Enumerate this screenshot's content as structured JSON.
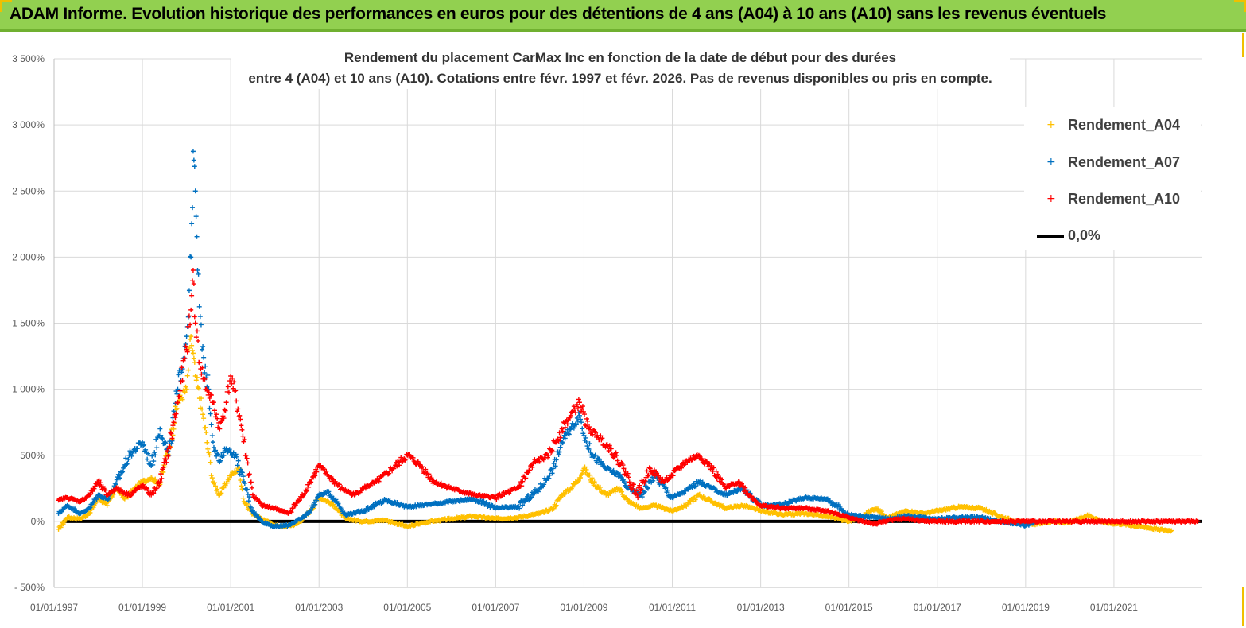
{
  "header": {
    "title": "ADAM Informe. Evolution historique des performances en euros pour des détentions de 4 ans (A04) à 10 ans (A10) sans les revenus éventuels"
  },
  "colors": {
    "header_bg": "#92d050",
    "a04": "#ffc000",
    "a07": "#0070c0",
    "a10": "#ff0000",
    "zero": "#000000",
    "grid": "#d9d9d9"
  },
  "chart_data": {
    "type": "scatter",
    "title_lines": [
      "Rendement du placement CarMax Inc en fonction de la date de début pour des durées",
      "entre 4 (A04) et 10 ans (A10).  Cotations entre févr. 1997 et févr. 2026.  Pas de revenus disponibles ou pris en compte."
    ],
    "xlabel": "",
    "ylabel": "",
    "xlim": [
      1997.0,
      2023.0
    ],
    "ylim": [
      -500,
      3500
    ],
    "y_ticks": [
      3500,
      3000,
      2500,
      2000,
      1500,
      1000,
      500,
      0,
      -500
    ],
    "y_tick_labels": [
      "3 500%",
      "3 000%",
      "2 500%",
      "2 000%",
      "1 500%",
      "1 000%",
      "500%",
      "0%",
      "- 500%"
    ],
    "x_ticks": [
      1997,
      1999,
      2001,
      2003,
      2005,
      2007,
      2009,
      2011,
      2013,
      2015,
      2017,
      2019,
      2021
    ],
    "x_tick_labels": [
      "01/01/1997",
      "01/01/1999",
      "01/01/2001",
      "01/01/2003",
      "01/01/2005",
      "01/01/2007",
      "01/01/2009",
      "01/01/2011",
      "01/01/2013",
      "01/01/2015",
      "01/01/2017",
      "01/01/2019",
      "01/01/2021"
    ],
    "legend": [
      "Rendement_A04",
      "Rendement_A07",
      "Rendement_A10",
      "0,0%"
    ],
    "legend_position": "top-right",
    "series": [
      {
        "name": "Rendement_A04",
        "color": "#ffc000",
        "points": [
          [
            1997.1,
            -60
          ],
          [
            1997.3,
            30
          ],
          [
            1997.6,
            20
          ],
          [
            1997.8,
            60
          ],
          [
            1998.0,
            180
          ],
          [
            1998.2,
            120
          ],
          [
            1998.4,
            260
          ],
          [
            1998.6,
            170
          ],
          [
            1998.8,
            240
          ],
          [
            1999.0,
            300
          ],
          [
            1999.2,
            330
          ],
          [
            1999.4,
            280
          ],
          [
            1999.6,
            560
          ],
          [
            1999.8,
            900
          ],
          [
            2000.0,
            1000
          ],
          [
            2000.1,
            1400
          ],
          [
            2000.2,
            1100
          ],
          [
            2000.35,
            850
          ],
          [
            2000.5,
            520
          ],
          [
            2000.6,
            300
          ],
          [
            2000.75,
            200
          ],
          [
            2000.9,
            290
          ],
          [
            2001.0,
            350
          ],
          [
            2001.2,
            400
          ],
          [
            2001.3,
            150
          ],
          [
            2001.5,
            60
          ],
          [
            2001.7,
            20
          ],
          [
            2002.0,
            -30
          ],
          [
            2002.2,
            -40
          ],
          [
            2002.5,
            -20
          ],
          [
            2002.8,
            80
          ],
          [
            2003.0,
            180
          ],
          [
            2003.2,
            150
          ],
          [
            2003.4,
            100
          ],
          [
            2003.6,
            20
          ],
          [
            2004.0,
            0
          ],
          [
            2004.5,
            10
          ],
          [
            2005.0,
            -40
          ],
          [
            2005.5,
            0
          ],
          [
            2006.0,
            20
          ],
          [
            2006.5,
            40
          ],
          [
            2007.0,
            20
          ],
          [
            2007.5,
            30
          ],
          [
            2008.0,
            60
          ],
          [
            2008.3,
            100
          ],
          [
            2008.5,
            200
          ],
          [
            2008.7,
            250
          ],
          [
            2008.9,
            330
          ],
          [
            2009.0,
            400
          ],
          [
            2009.2,
            300
          ],
          [
            2009.5,
            200
          ],
          [
            2009.8,
            250
          ],
          [
            2010.0,
            150
          ],
          [
            2010.3,
            100
          ],
          [
            2010.6,
            120
          ],
          [
            2011.0,
            80
          ],
          [
            2011.3,
            120
          ],
          [
            2011.6,
            200
          ],
          [
            2011.9,
            150
          ],
          [
            2012.2,
            100
          ],
          [
            2012.6,
            120
          ],
          [
            2013.0,
            80
          ],
          [
            2013.5,
            50
          ],
          [
            2014.0,
            60
          ],
          [
            2014.5,
            40
          ],
          [
            2015.0,
            0
          ],
          [
            2015.3,
            40
          ],
          [
            2015.6,
            100
          ],
          [
            2015.9,
            30
          ],
          [
            2016.3,
            80
          ],
          [
            2016.7,
            60
          ],
          [
            2017.0,
            80
          ],
          [
            2017.5,
            110
          ],
          [
            2018.0,
            100
          ],
          [
            2018.4,
            40
          ],
          [
            2018.8,
            0
          ],
          [
            2019.2,
            -20
          ],
          [
            2019.6,
            0
          ],
          [
            2020.0,
            -10
          ],
          [
            2020.4,
            50
          ],
          [
            2020.8,
            -10
          ],
          [
            2021.2,
            -20
          ],
          [
            2021.6,
            -40
          ],
          [
            2022.0,
            -60
          ],
          [
            2022.3,
            -70
          ]
        ]
      },
      {
        "name": "Rendement_A07",
        "color": "#0070c0",
        "points": [
          [
            1997.1,
            60
          ],
          [
            1997.3,
            120
          ],
          [
            1997.6,
            60
          ],
          [
            1997.8,
            100
          ],
          [
            1998.0,
            200
          ],
          [
            1998.2,
            170
          ],
          [
            1998.4,
            280
          ],
          [
            1998.7,
            500
          ],
          [
            1999.0,
            600
          ],
          [
            1999.2,
            420
          ],
          [
            1999.4,
            700
          ],
          [
            1999.6,
            500
          ],
          [
            1999.8,
            1000
          ],
          [
            2000.0,
            1400
          ],
          [
            2000.1,
            2000
          ],
          [
            2000.15,
            2800
          ],
          [
            2000.2,
            2500
          ],
          [
            2000.25,
            1900
          ],
          [
            2000.35,
            1300
          ],
          [
            2000.5,
            1000
          ],
          [
            2000.6,
            600
          ],
          [
            2000.75,
            450
          ],
          [
            2000.9,
            550
          ],
          [
            2001.1,
            500
          ],
          [
            2001.3,
            300
          ],
          [
            2001.5,
            80
          ],
          [
            2001.7,
            0
          ],
          [
            2002.0,
            -40
          ],
          [
            2002.3,
            -30
          ],
          [
            2002.6,
            20
          ],
          [
            2002.8,
            80
          ],
          [
            2003.0,
            200
          ],
          [
            2003.2,
            220
          ],
          [
            2003.4,
            150
          ],
          [
            2003.6,
            50
          ],
          [
            2004.0,
            80
          ],
          [
            2004.5,
            160
          ],
          [
            2005.0,
            110
          ],
          [
            2005.5,
            130
          ],
          [
            2006.0,
            150
          ],
          [
            2006.5,
            170
          ],
          [
            2007.0,
            100
          ],
          [
            2007.5,
            110
          ],
          [
            2008.0,
            250
          ],
          [
            2008.3,
            400
          ],
          [
            2008.5,
            600
          ],
          [
            2008.7,
            700
          ],
          [
            2008.9,
            800
          ],
          [
            2009.0,
            650
          ],
          [
            2009.2,
            500
          ],
          [
            2009.5,
            400
          ],
          [
            2009.8,
            350
          ],
          [
            2010.0,
            250
          ],
          [
            2010.3,
            200
          ],
          [
            2010.6,
            350
          ],
          [
            2011.0,
            180
          ],
          [
            2011.3,
            230
          ],
          [
            2011.6,
            300
          ],
          [
            2011.9,
            250
          ],
          [
            2012.2,
            200
          ],
          [
            2012.6,
            250
          ],
          [
            2013.0,
            120
          ],
          [
            2013.5,
            130
          ],
          [
            2014.0,
            180
          ],
          [
            2014.5,
            170
          ],
          [
            2015.0,
            50
          ],
          [
            2015.3,
            40
          ],
          [
            2015.6,
            30
          ],
          [
            2015.9,
            20
          ],
          [
            2016.3,
            40
          ],
          [
            2016.7,
            30
          ],
          [
            2017.0,
            20
          ],
          [
            2017.5,
            30
          ],
          [
            2018.0,
            30
          ],
          [
            2018.4,
            0
          ],
          [
            2018.8,
            -20
          ],
          [
            2019.0,
            -30
          ],
          [
            2019.2,
            -10
          ]
        ]
      },
      {
        "name": "Rendement_A10",
        "color": "#ff0000",
        "points": [
          [
            1997.1,
            160
          ],
          [
            1997.3,
            180
          ],
          [
            1997.6,
            150
          ],
          [
            1997.8,
            200
          ],
          [
            1998.0,
            300
          ],
          [
            1998.2,
            200
          ],
          [
            1998.4,
            250
          ],
          [
            1998.7,
            200
          ],
          [
            1999.0,
            270
          ],
          [
            1999.2,
            200
          ],
          [
            1999.4,
            300
          ],
          [
            1999.6,
            550
          ],
          [
            1999.8,
            900
          ],
          [
            2000.0,
            1300
          ],
          [
            2000.1,
            1600
          ],
          [
            2000.15,
            1900
          ],
          [
            2000.2,
            1500
          ],
          [
            2000.3,
            1200
          ],
          [
            2000.45,
            1000
          ],
          [
            2000.6,
            900
          ],
          [
            2000.75,
            700
          ],
          [
            2000.9,
            900
          ],
          [
            2001.0,
            1100
          ],
          [
            2001.2,
            800
          ],
          [
            2001.35,
            500
          ],
          [
            2001.5,
            200
          ],
          [
            2001.7,
            120
          ],
          [
            2002.0,
            100
          ],
          [
            2002.3,
            60
          ],
          [
            2002.6,
            180
          ],
          [
            2002.8,
            300
          ],
          [
            2003.0,
            420
          ],
          [
            2003.2,
            350
          ],
          [
            2003.5,
            250
          ],
          [
            2003.8,
            200
          ],
          [
            2004.0,
            250
          ],
          [
            2004.3,
            300
          ],
          [
            2004.6,
            380
          ],
          [
            2005.0,
            500
          ],
          [
            2005.3,
            420
          ],
          [
            2005.6,
            300
          ],
          [
            2006.0,
            250
          ],
          [
            2006.5,
            200
          ],
          [
            2007.0,
            180
          ],
          [
            2007.5,
            250
          ],
          [
            2007.9,
            450
          ],
          [
            2008.2,
            500
          ],
          [
            2008.5,
            700
          ],
          [
            2008.7,
            800
          ],
          [
            2008.9,
            900
          ],
          [
            2009.1,
            700
          ],
          [
            2009.3,
            650
          ],
          [
            2009.6,
            550
          ],
          [
            2009.9,
            400
          ],
          [
            2010.2,
            200
          ],
          [
            2010.5,
            400
          ],
          [
            2010.8,
            300
          ],
          [
            2011.0,
            350
          ],
          [
            2011.3,
            450
          ],
          [
            2011.6,
            500
          ],
          [
            2011.9,
            400
          ],
          [
            2012.2,
            250
          ],
          [
            2012.5,
            300
          ],
          [
            2012.8,
            180
          ],
          [
            2013.0,
            120
          ],
          [
            2013.5,
            100
          ],
          [
            2014.0,
            100
          ],
          [
            2014.5,
            80
          ],
          [
            2014.8,
            50
          ],
          [
            2015.0,
            30
          ],
          [
            2015.3,
            0
          ],
          [
            2015.6,
            -20
          ],
          [
            2015.9,
            10
          ],
          [
            2016.3,
            20
          ],
          [
            2016.8,
            0
          ],
          [
            2017.3,
            0
          ],
          [
            2017.8,
            0
          ],
          [
            2018.4,
            0
          ],
          [
            2019.0,
            0
          ],
          [
            2019.5,
            0
          ],
          [
            2020.0,
            0
          ],
          [
            2020.5,
            0
          ],
          [
            2021.0,
            0
          ],
          [
            2021.5,
            0
          ],
          [
            2022.0,
            0
          ],
          [
            2022.5,
            0
          ],
          [
            2022.9,
            0
          ]
        ]
      }
    ],
    "reference_line": {
      "name": "0,0%",
      "value": 0
    }
  }
}
